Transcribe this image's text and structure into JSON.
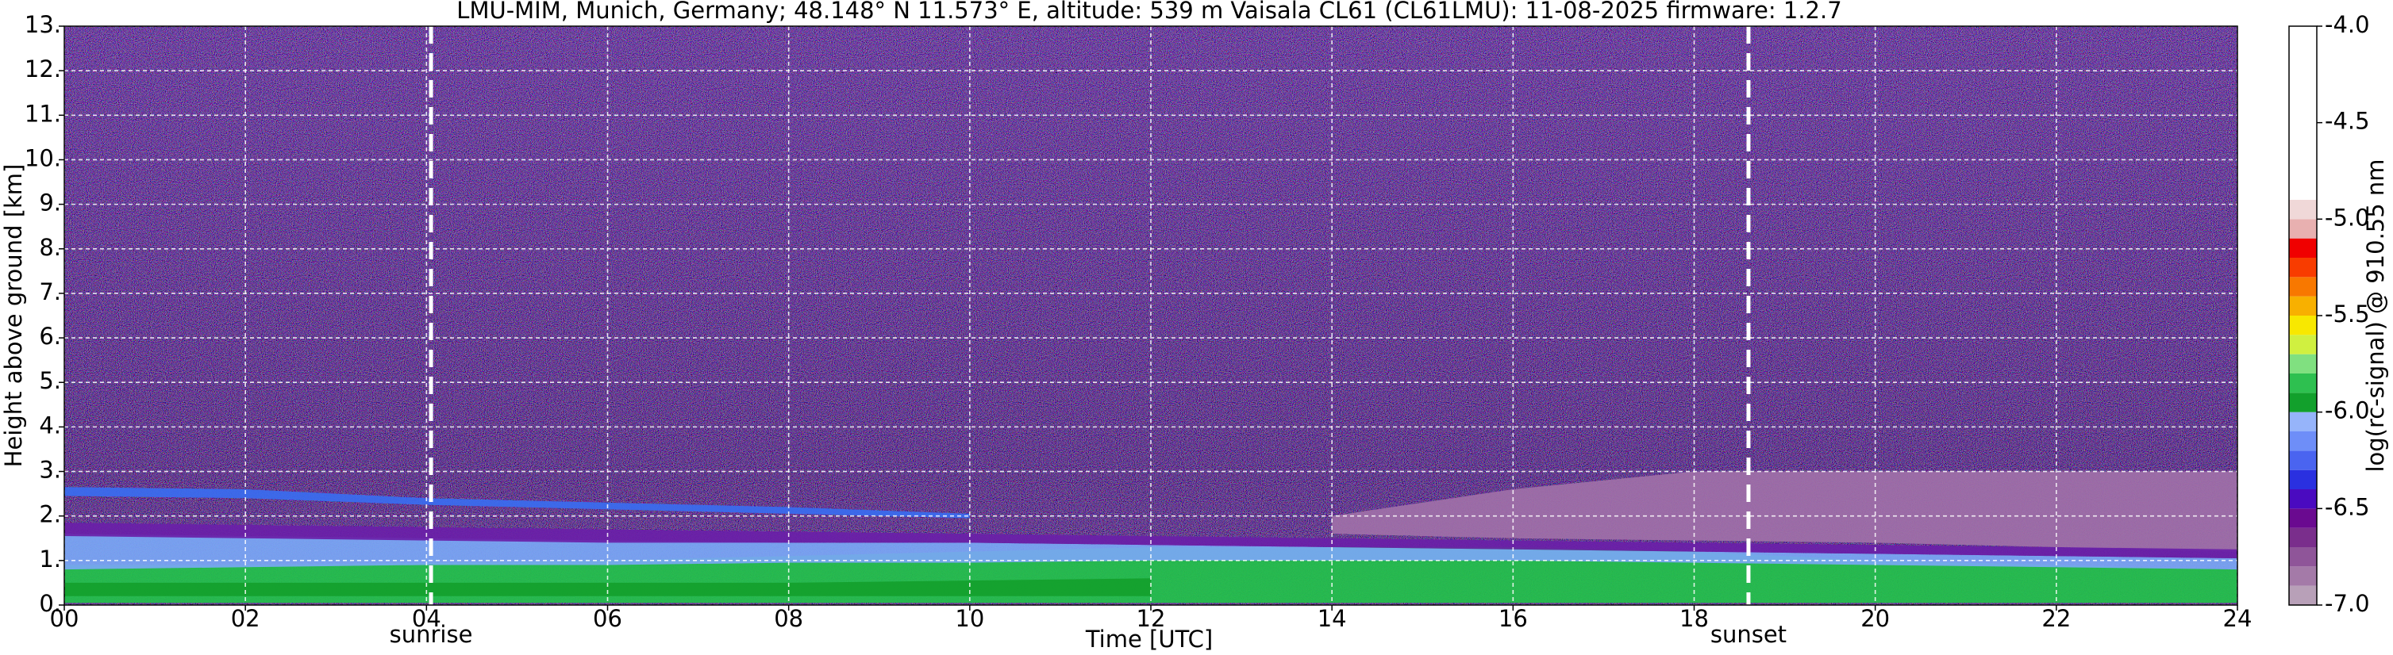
{
  "chart_data": {
    "type": "heatmap",
    "title": "LMU-MIM, Munich, Germany; 48.148° N 11.573° E, altitude: 539 m    Vaisala CL61 (CL61LMU): 11-08-2025    firmware: 1.2.7",
    "x_label": "Time [UTC]",
    "y_label": "Height above ground [km]",
    "xlim": [
      0,
      24
    ],
    "ylim": [
      0,
      13
    ],
    "xticks": [
      {
        "value": 0,
        "label": "00"
      },
      {
        "value": 2,
        "label": "02"
      },
      {
        "value": 4,
        "label": "04"
      },
      {
        "value": 6,
        "label": "06"
      },
      {
        "value": 8,
        "label": "08"
      },
      {
        "value": 10,
        "label": "10"
      },
      {
        "value": 12,
        "label": "12"
      },
      {
        "value": 14,
        "label": "14"
      },
      {
        "value": 16,
        "label": "16"
      },
      {
        "value": 18,
        "label": "18"
      },
      {
        "value": 20,
        "label": "20"
      },
      {
        "value": 22,
        "label": "22"
      },
      {
        "value": 24,
        "label": "24"
      }
    ],
    "yticks": [
      {
        "value": 0,
        "label": "0."
      },
      {
        "value": 1,
        "label": "1."
      },
      {
        "value": 2,
        "label": "2."
      },
      {
        "value": 3,
        "label": "3."
      },
      {
        "value": 4,
        "label": "4."
      },
      {
        "value": 5,
        "label": "5."
      },
      {
        "value": 6,
        "label": "6."
      },
      {
        "value": 7,
        "label": "7."
      },
      {
        "value": 8,
        "label": "8."
      },
      {
        "value": 9,
        "label": "9."
      },
      {
        "value": 10,
        "label": "10."
      },
      {
        "value": 11,
        "label": "11."
      },
      {
        "value": 12,
        "label": "12."
      },
      {
        "value": 13,
        "label": "13."
      }
    ],
    "grid": true,
    "annotations": [
      {
        "text": "sunrise",
        "x": 4.05
      },
      {
        "text": "sunset",
        "x": 18.6
      }
    ],
    "x": [
      0,
      2,
      4,
      6,
      8,
      10,
      12,
      14,
      16,
      18,
      20,
      22,
      24
    ],
    "series": [
      {
        "color": "#a070a8",
        "lower": [
          null,
          null,
          null,
          null,
          null,
          null,
          null,
          1.6,
          1.5,
          1.45,
          1.4,
          1.3,
          1.2
        ],
        "upper": [
          null,
          null,
          null,
          null,
          null,
          null,
          null,
          2.0,
          2.6,
          3.0,
          3.0,
          3.0,
          3.0
        ]
      },
      {
        "color": "#22c24a",
        "lower": [
          0.05,
          0.05,
          0.05,
          0.05,
          0.05,
          0.05,
          0.05,
          0.05,
          0.05,
          0.05,
          0.05,
          0.05,
          0.05
        ],
        "upper": [
          0.9,
          0.9,
          0.95,
          1.0,
          1.1,
          1.2,
          1.3,
          1.3,
          1.3,
          1.2,
          1.0,
          0.9,
          0.8
        ]
      },
      {
        "color": "#7aa7f5",
        "lower": [
          0.8,
          0.85,
          0.9,
          0.9,
          0.95,
          0.95,
          1.0,
          1.0,
          1.0,
          0.95,
          0.9,
          0.85,
          0.8
        ],
        "upper": [
          1.6,
          1.55,
          1.5,
          1.45,
          1.4,
          1.4,
          1.35,
          1.3,
          1.25,
          1.2,
          1.15,
          1.1,
          1.05
        ]
      },
      {
        "color": "#6a1fa8",
        "lower": [
          1.55,
          1.5,
          1.45,
          1.4,
          1.4,
          1.4,
          1.35,
          1.3,
          1.25,
          1.2,
          1.15,
          1.1,
          1.05
        ],
        "upper": [
          1.85,
          1.8,
          1.75,
          1.7,
          1.65,
          1.6,
          1.55,
          1.5,
          1.45,
          1.4,
          1.35,
          1.3,
          1.25
        ]
      },
      {
        "color": "#14a02c",
        "lower": [
          0.2,
          0.2,
          0.2,
          0.2,
          0.2,
          0.2,
          0.2,
          null,
          null,
          null,
          null,
          null,
          null
        ],
        "upper": [
          0.5,
          0.5,
          0.5,
          0.5,
          0.5,
          0.55,
          0.6,
          null,
          null,
          null,
          null,
          null,
          null
        ]
      },
      {
        "color": "#3a6cf0",
        "lower": [
          2.45,
          2.4,
          2.25,
          2.15,
          2.05,
          1.95,
          null,
          null,
          null,
          null,
          null,
          null,
          null
        ],
        "upper": [
          2.65,
          2.6,
          2.4,
          2.3,
          2.2,
          2.05,
          null,
          null,
          null,
          null,
          null,
          null,
          null
        ]
      }
    ],
    "colorbar": {
      "label": "log(rc-signal) @ 910.55 nm",
      "lim": [
        -7,
        -4
      ],
      "ticks": [
        {
          "value": -4,
          "label": "-4.0"
        },
        {
          "value": -4.5,
          "label": "-4.5"
        },
        {
          "value": -5,
          "label": "-5.0"
        },
        {
          "value": -5.5,
          "label": "-5.5"
        },
        {
          "value": -6,
          "label": "-6.0"
        },
        {
          "value": -6.5,
          "label": "-6.5"
        },
        {
          "value": -7,
          "label": "-7.0"
        }
      ],
      "levels": [
        -7.0,
        -6.9,
        -6.8,
        -6.7,
        -6.6,
        -6.5,
        -6.4,
        -6.3,
        -6.2,
        -6.1,
        -6.0,
        -5.9,
        -5.8,
        -5.7,
        -5.6,
        -5.5,
        -5.4,
        -5.3,
        -5.2,
        -5.1,
        -5.0,
        -4.9
      ],
      "colors": [
        "#b8a0b8",
        "#a47aa8",
        "#8f5599",
        "#7a2e8c",
        "#6a0a90",
        "#4a0ac0",
        "#2a30e0",
        "#4a64f0",
        "#6e8ef8",
        "#96b4fa",
        "#12a02c",
        "#2ec050",
        "#80e080",
        "#d0f040",
        "#f8e800",
        "#f8b000",
        "#f87800",
        "#f83c00",
        "#f00000",
        "#e8b0b0",
        "#f0d8d8"
      ]
    }
  }
}
